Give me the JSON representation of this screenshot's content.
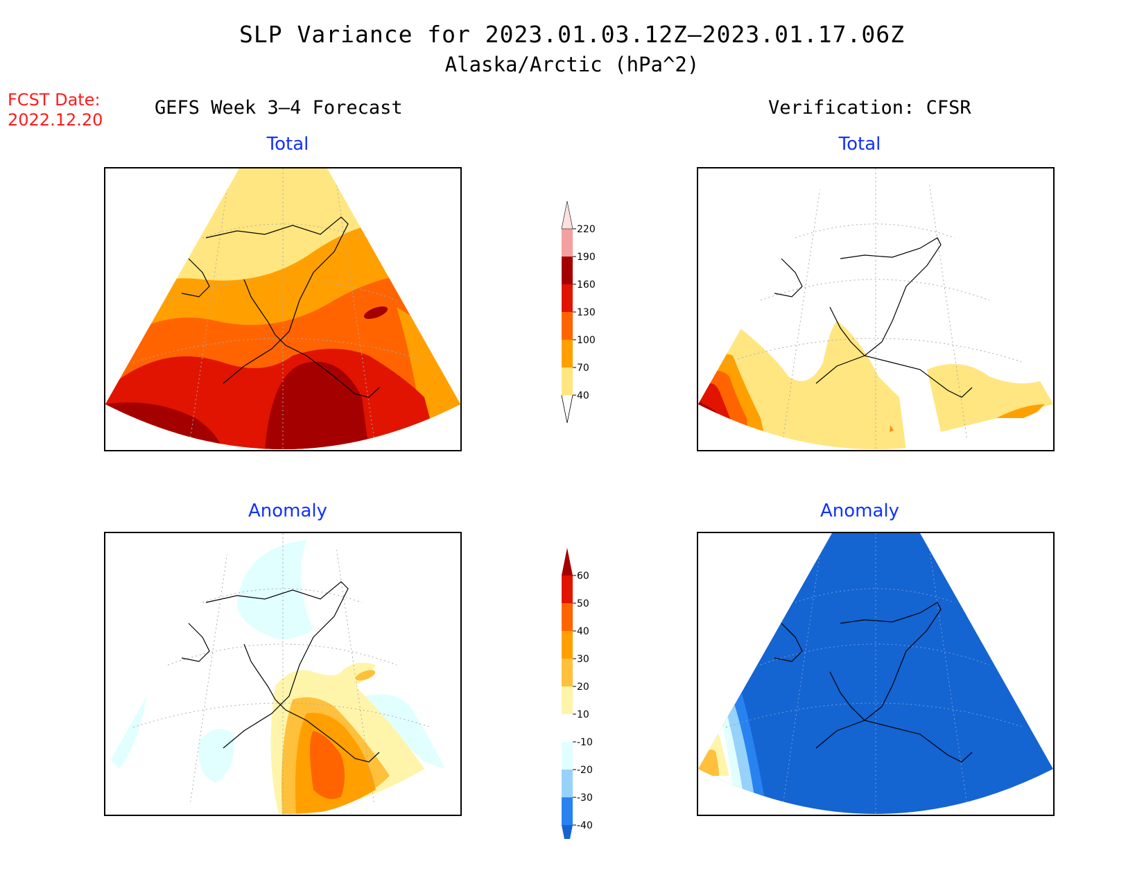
{
  "title": "SLP Variance for 2023.01.03.12Z—2023.01.17.06Z",
  "subtitle": "Alaska/Arctic (hPa^2)",
  "forecast_date": {
    "label": "FCST Date:",
    "value": "2022.12.20"
  },
  "columns": {
    "left": "GEFS Week 3—4 Forecast",
    "right": "Verification: CFSR"
  },
  "panels": {
    "top_left": "Total",
    "top_right": "Total",
    "bottom_left": "Anomaly",
    "bottom_right": "Anomaly"
  },
  "colorbars": {
    "total": {
      "levels": [
        "40",
        "70",
        "100",
        "130",
        "160",
        "190",
        "220"
      ],
      "colors": [
        "#ffe680",
        "#ffa000",
        "#ff6400",
        "#e01400",
        "#a50000",
        "#f4a0a0",
        "#fde0e0"
      ]
    },
    "anomaly": {
      "levels": [
        "-40",
        "-30",
        "-20",
        "-10",
        "10",
        "20",
        "30",
        "40",
        "50",
        "60"
      ],
      "colors": [
        "#1464d2",
        "#2882f0",
        "#96d2fa",
        "#e1ffff",
        "#ffffff",
        "#fff5aa",
        "#ffc03c",
        "#ffa000",
        "#ff6400",
        "#e01400",
        "#a50000"
      ]
    }
  }
}
